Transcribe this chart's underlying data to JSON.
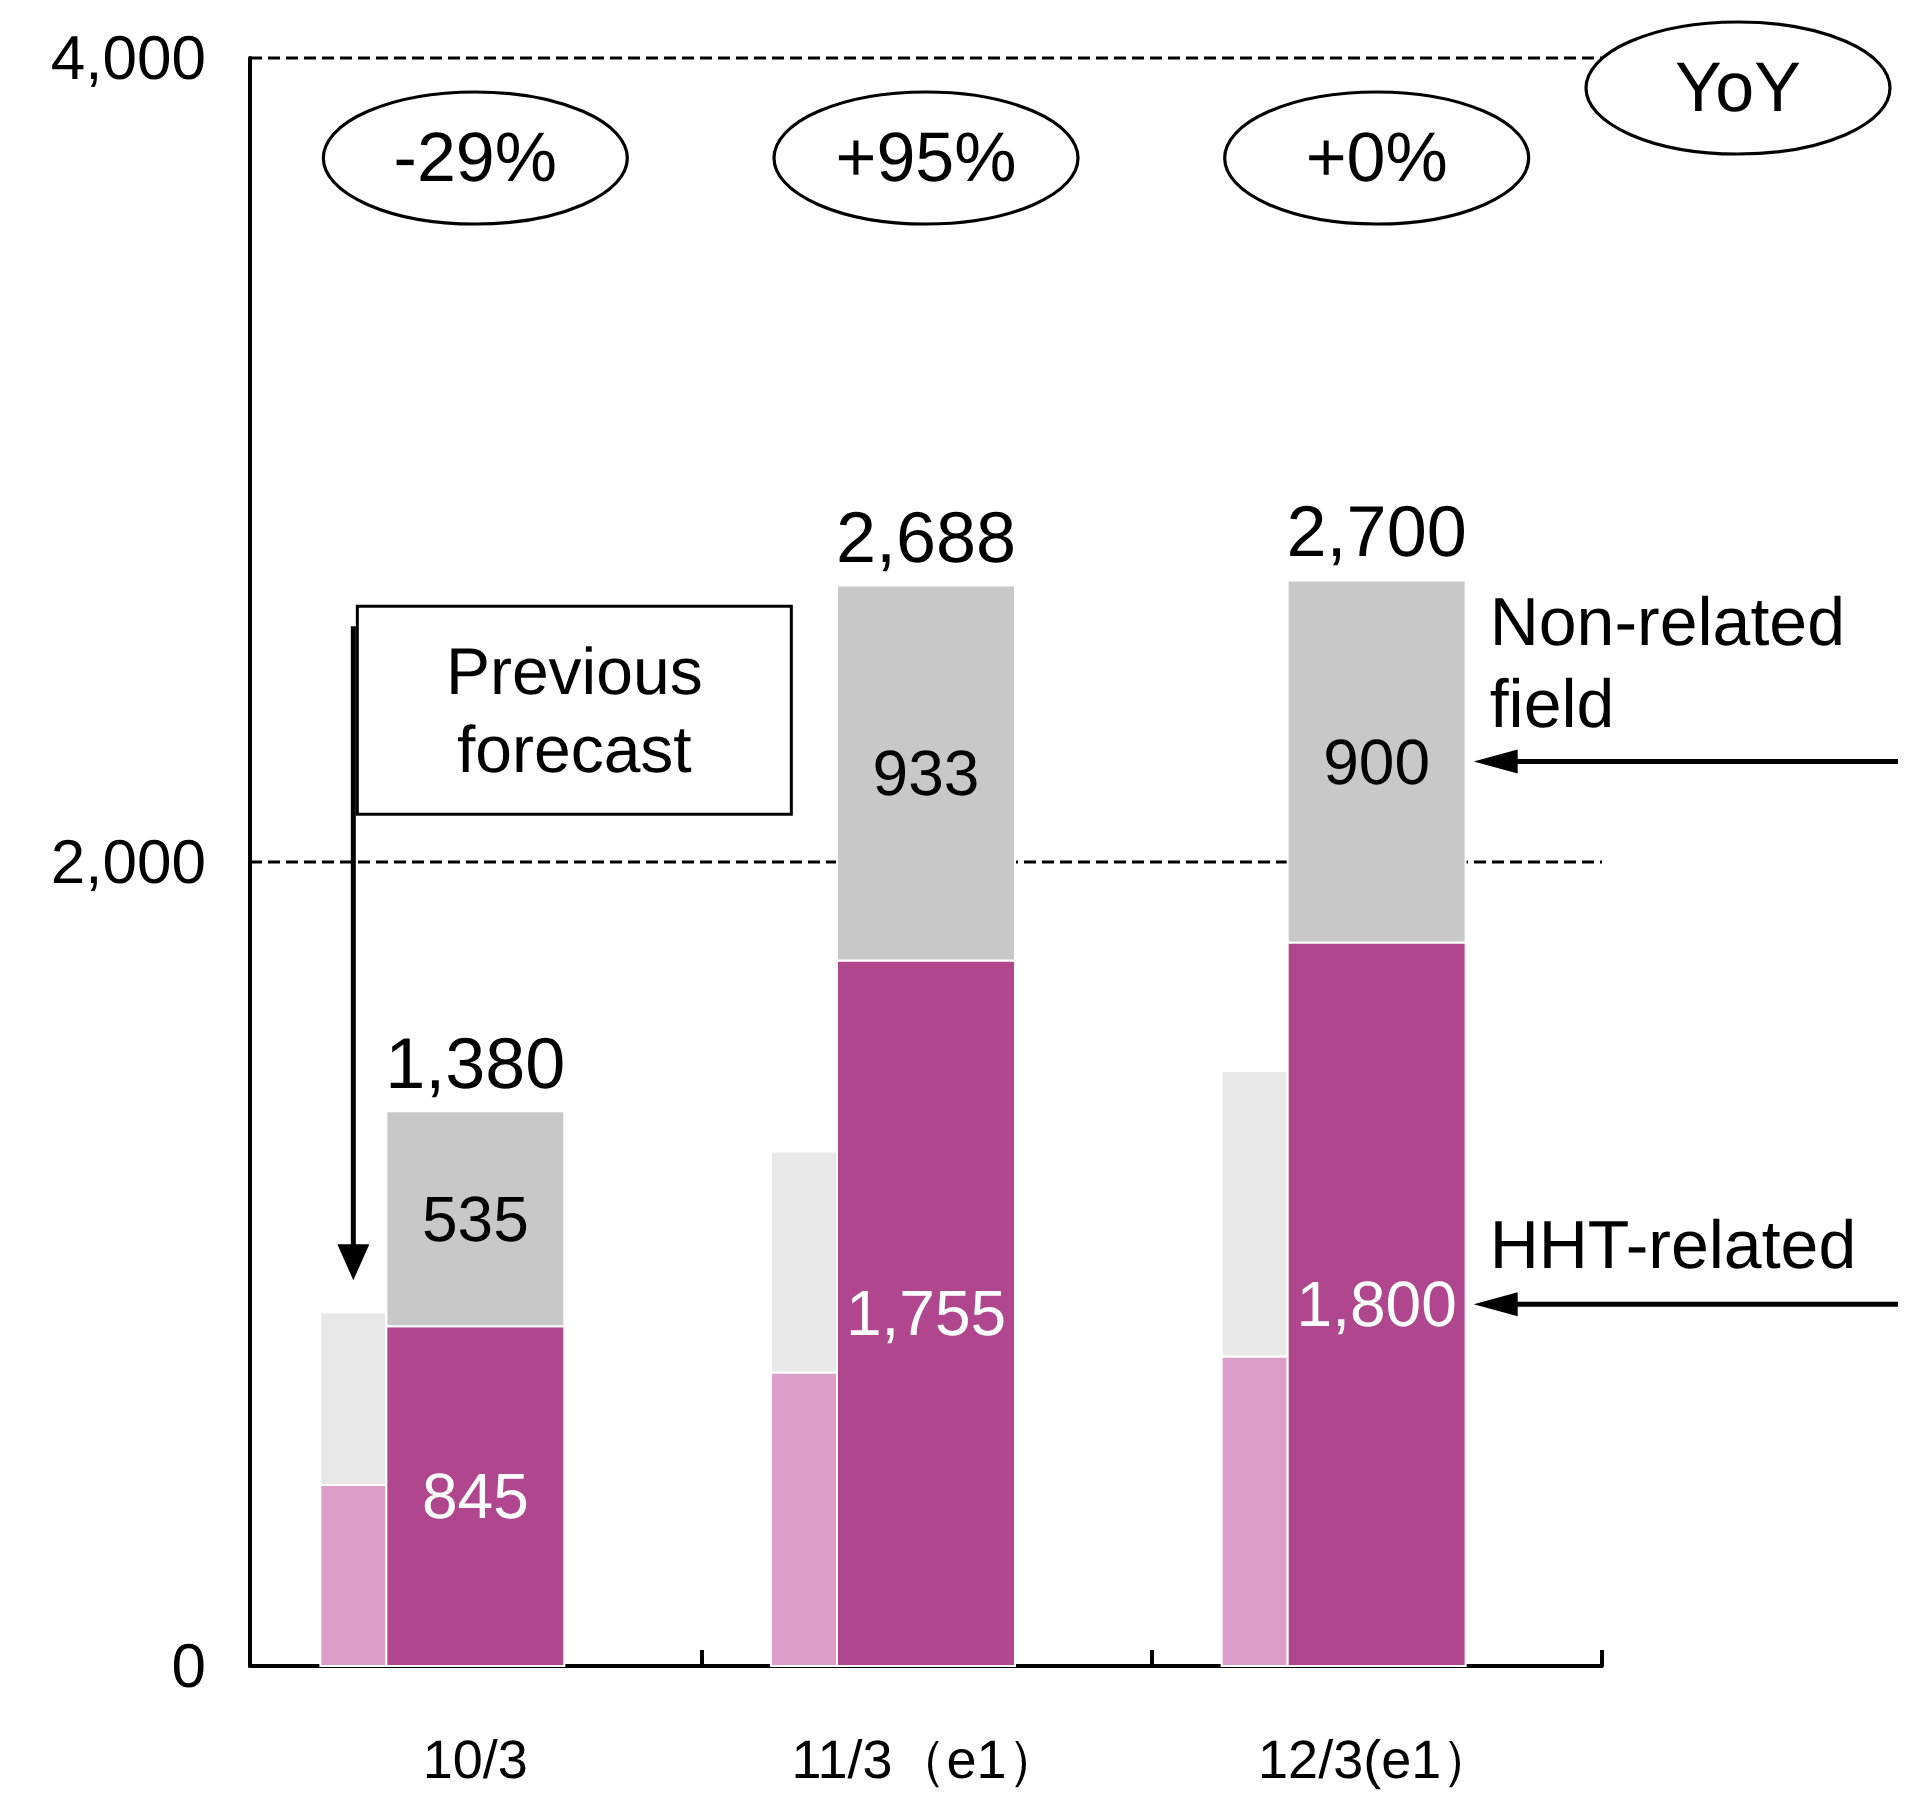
{
  "chart_data": {
    "type": "bar",
    "stacked": true,
    "categories": [
      null,
      "10/3",
      null,
      null,
      "11/3（e1）",
      null,
      null,
      "12/3(e1）",
      null
    ],
    "series": [
      {
        "color": "#dc9ec8",
        "values": [
          450,
          null,
          null,
          730,
          null,
          null,
          770,
          null,
          null
        ]
      },
      {
        "color": "#e8e8e8",
        "values": [
          430,
          null,
          null,
          550,
          null,
          null,
          710,
          null,
          null
        ]
      },
      {
        "name": "HHT-related",
        "color": "#b0478e",
        "values": [
          null,
          845,
          null,
          null,
          1755,
          null,
          null,
          1800,
          null
        ],
        "value_labels": [
          null,
          "845",
          null,
          null,
          "1,755",
          null,
          null,
          "1,800",
          null
        ]
      },
      {
        "name": "Non-related field",
        "color": "#c8c8c8",
        "values": [
          null,
          535,
          null,
          null,
          933,
          null,
          null,
          900,
          null
        ],
        "value_labels": [
          null,
          "535",
          null,
          null,
          "933",
          null,
          null,
          "900",
          null
        ]
      }
    ],
    "totals": [
      null,
      "1,380",
      null,
      null,
      "2,688",
      null,
      null,
      "2,700",
      null
    ],
    "ylim": [
      0,
      4000
    ],
    "yticks": [
      0,
      {
        "value": 2000,
        "label": "2,000"
      },
      {
        "value": 4000,
        "label": "4,000"
      }
    ],
    "grid": "y",
    "annotations": [
      "YoY",
      "-29%",
      "+95%",
      "+0%",
      "Previous forecast"
    ]
  }
}
